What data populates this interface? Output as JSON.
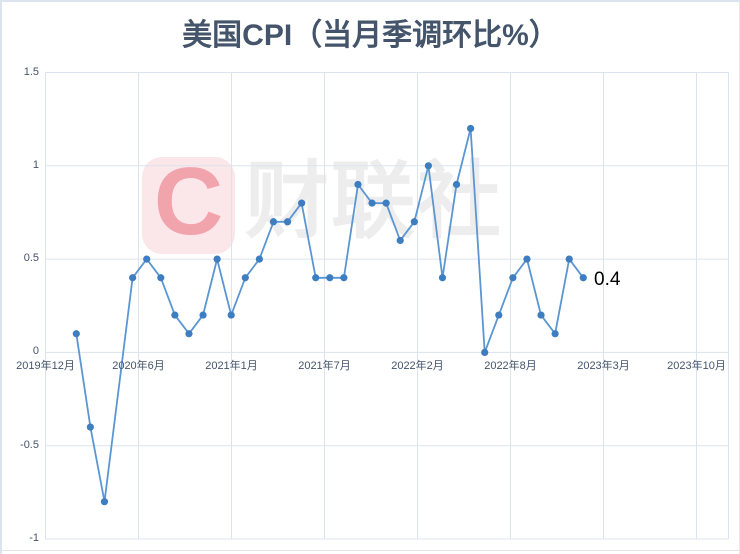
{
  "watermark": {
    "logo_letter": "C",
    "brand_text": "财联社"
  },
  "chart_data": {
    "type": "line",
    "title": "美国CPI（当月季调环比%）",
    "ylim": [
      -1,
      1.5
    ],
    "grid": true,
    "legend": "none",
    "y_tick_labels": [
      "1.5",
      "1",
      "0.5",
      "0",
      "-0.5",
      "-1"
    ],
    "y_tick_values": [
      1.5,
      1,
      0.5,
      0,
      -0.5,
      -1
    ],
    "x_tick_labels": [
      "2019年12月",
      "2020年6月",
      "2021年1月",
      "2021年7月",
      "2022年2月",
      "2022年8月",
      "2023年3月",
      "2023年10月"
    ],
    "series": [
      {
        "slots": [
          0,
          1,
          2,
          4,
          5,
          6,
          7,
          8,
          9,
          10,
          11,
          12,
          13,
          14,
          15,
          16,
          17,
          18,
          19,
          20,
          21,
          22,
          23,
          24,
          25,
          26,
          27,
          28,
          29,
          30,
          31,
          32,
          33,
          34,
          35,
          36
        ],
        "values": [
          0.1,
          -0.4,
          -0.8,
          0.4,
          0.5,
          0.4,
          0.2,
          0.1,
          0.2,
          0.5,
          0.2,
          0.4,
          0.5,
          0.7,
          0.7,
          0.8,
          0.4,
          0.4,
          0.4,
          0.9,
          0.8,
          0.8,
          0.6,
          0.7,
          1.0,
          0.4,
          0.9,
          1.2,
          0.0,
          0.2,
          0.4,
          0.5,
          0.2,
          0.1,
          0.5,
          0.4
        ],
        "gap_note": "one empty slot (index 3) bridged by a straight line segment"
      }
    ],
    "last_point_label": "0.4",
    "colors": {
      "line": "#5b96d2",
      "marker": "#3d7dc0",
      "gridline": "#dce3ee",
      "title": "#44546a",
      "tick_text": "#44546a",
      "data_label": "#000000",
      "watermark_square": "#fbe6e9",
      "watermark_letter": "#f2a4ad",
      "watermark_text": "#ededed"
    }
  }
}
